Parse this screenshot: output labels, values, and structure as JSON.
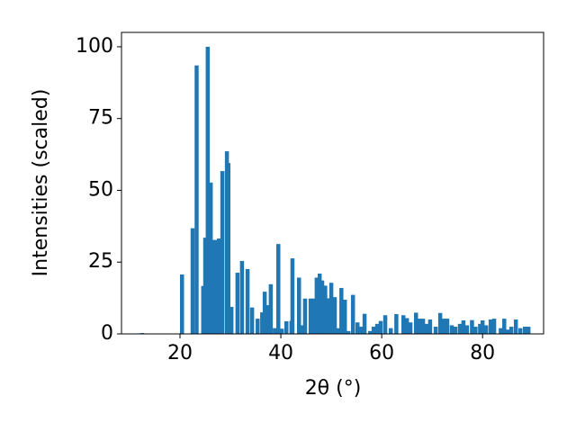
{
  "chart_data": {
    "type": "bar",
    "xlabel": "2θ (°)",
    "ylabel": "Intensities (scaled)",
    "color": "#1f77b4",
    "x": [
      12.5,
      20.4,
      22.5,
      23.3,
      24.6,
      25.0,
      25.5,
      26.1,
      26.6,
      27.1,
      27.7,
      28.4,
      29.3,
      29.6,
      30.2,
      31.4,
      32.3,
      33.4,
      34.3,
      35.4,
      36.3,
      36.8,
      37.5,
      38.0,
      38.8,
      39.5,
      40.2,
      41.1,
      42.1,
      42.3,
      43.6,
      44.3,
      44.8,
      45.9,
      46.4,
      47.1,
      47.7,
      48.2,
      48.8,
      49.3,
      50.0,
      50.7,
      51.4,
      52.0,
      52.7,
      53.4,
      54.3,
      55.2,
      55.9,
      56.6,
      57.7,
      58.4,
      59.1,
      59.8,
      60.7,
      61.8,
      62.9,
      64.3,
      65.0,
      65.7,
      66.8,
      67.5,
      68.2,
      68.9,
      69.6,
      70.7,
      71.6,
      72.3,
      73.0,
      73.9,
      74.6,
      75.5,
      76.2,
      76.9,
      77.9,
      78.6,
      79.5,
      80.0,
      80.7,
      81.6,
      82.3,
      83.6,
      84.3,
      85.0,
      85.7,
      86.6,
      87.5,
      88.4,
      89.1
    ],
    "values": [
      0.3,
      20.7,
      36.8,
      93.5,
      16.7,
      33.5,
      100,
      52.7,
      32.7,
      32.7,
      33.2,
      56.7,
      63.6,
      59.5,
      9.4,
      21.3,
      25.4,
      22.6,
      9.2,
      5.3,
      7.5,
      14.7,
      10,
      17.3,
      2,
      31.3,
      1.8,
      4.4,
      4.5,
      26.3,
      19.6,
      3,
      12.3,
      12.3,
      12.3,
      19.6,
      21,
      18.6,
      16.8,
      12.4,
      17.8,
      12.8,
      2,
      16,
      11.9,
      1,
      13.6,
      4,
      2.5,
      7,
      1,
      2.5,
      3.5,
      4.5,
      6.5,
      2,
      6.9,
      6.5,
      5.5,
      4,
      7.4,
      5.3,
      5.3,
      3.5,
      5,
      2.5,
      7.3,
      5.3,
      5.3,
      3,
      2.5,
      3.5,
      4.7,
      3,
      4.8,
      2.5,
      3.5,
      4.7,
      3,
      5,
      5.3,
      2,
      5.3,
      1.5,
      2.5,
      5,
      2,
      2.5,
      2.5
    ],
    "xlim": [
      8.4,
      92.1
    ],
    "ylim": [
      0,
      105
    ],
    "xticks": [
      20,
      40,
      60,
      80
    ],
    "yticks": [
      0,
      25,
      50,
      75,
      100
    ]
  }
}
